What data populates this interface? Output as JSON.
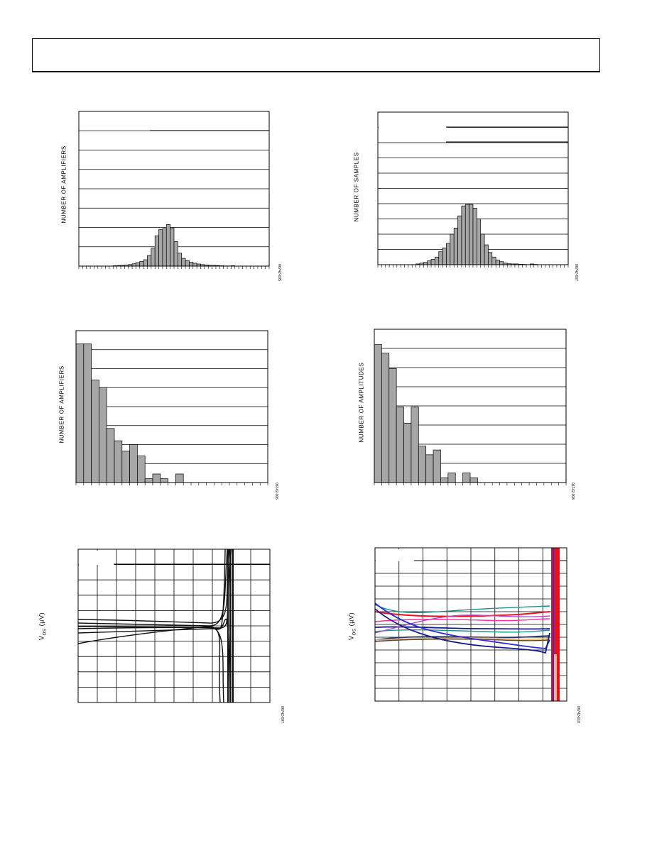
{
  "page": {
    "header_box": ""
  },
  "chart_data": [
    {
      "id": "c1",
      "type": "bar",
      "ylabel": "NUMBER OF AMPLIFIERS",
      "figure_id": "06742-005",
      "bins": 50,
      "values": [
        0,
        0,
        0,
        0,
        0,
        0,
        0,
        0,
        0,
        0.02,
        0.03,
        0.04,
        0.05,
        0.08,
        0.12,
        0.18,
        0.24,
        0.33,
        0.55,
        0.93,
        1.57,
        1.9,
        1.93,
        2.15,
        1.98,
        1.27,
        0.67,
        0.4,
        0.28,
        0.2,
        0.15,
        0.11,
        0.08,
        0.06,
        0.04,
        0.04,
        0.03,
        0.02,
        0.01,
        0.01,
        0.02,
        0,
        0,
        0,
        0,
        0,
        0,
        0,
        0,
        0
      ],
      "ylim": [
        0,
        8
      ],
      "grid": "horizontal",
      "legend_line": true
    },
    {
      "id": "c2",
      "type": "bar",
      "ylabel": "NUMBER OF SAMPLES",
      "figure_id": "06742-007",
      "bins": 50,
      "values": [
        0,
        0,
        0,
        0,
        0,
        0,
        0,
        0,
        0,
        0,
        0.05,
        0.1,
        0.15,
        0.25,
        0.35,
        0.5,
        0.85,
        1.1,
        1.4,
        2.0,
        2.4,
        3.2,
        3.85,
        3.95,
        3.95,
        3.7,
        3.0,
        2.0,
        1.3,
        0.8,
        0.5,
        0.3,
        0.2,
        0.1,
        0.06,
        0.05,
        0.05,
        0.03,
        0.02,
        0.01,
        0.05,
        0.02,
        0,
        0,
        0,
        0,
        0,
        0,
        0,
        0
      ],
      "ylim": [
        0,
        10
      ],
      "grid": "horizontal",
      "legend_line": true
    },
    {
      "id": "c3",
      "type": "bar",
      "ylabel": "NUMBER OF AMPLIFIERS",
      "figure_id": "06742-006",
      "bins": 25,
      "values": [
        7.3,
        7.3,
        5.4,
        5.0,
        2.85,
        2.2,
        1.65,
        2.0,
        1.4,
        0.2,
        0.45,
        0.2,
        0,
        0.45,
        0,
        0,
        0,
        0,
        0,
        0,
        0,
        0,
        0,
        0,
        0
      ],
      "ylim": [
        0,
        8
      ],
      "grid": "horizontal"
    },
    {
      "id": "c4",
      "type": "bar",
      "ylabel": "NUMBER OF AMPLITUDES",
      "figure_id": "06742-008",
      "bins": 26,
      "values": [
        7.2,
        6.75,
        5.95,
        3.95,
        3.1,
        3.95,
        1.9,
        1.45,
        1.7,
        0.25,
        0.5,
        0,
        0.5,
        0.25,
        0,
        0,
        0,
        0,
        0,
        0,
        0,
        0,
        0,
        0,
        0,
        0
      ],
      "ylim": [
        0,
        8
      ],
      "grid": "horizontal"
    },
    {
      "id": "c5",
      "type": "line",
      "ylabel": "V_OS (µV)",
      "ylabel_main": "V",
      "ylabel_sub": "OS",
      "ylabel_unit": " (µV)",
      "figure_id": "06742-007",
      "xlim": [
        0,
        10
      ],
      "ylim": [
        -5,
        5
      ],
      "grid": "both",
      "legend_line": true
    },
    {
      "id": "c6",
      "type": "line",
      "ylabel": "V_OS (µV)",
      "ylabel_main": "V",
      "ylabel_sub": "OS",
      "ylabel_unit": " (µV)",
      "figure_id": "06742-010",
      "xlim": [
        0,
        8
      ],
      "ylim": [
        -6,
        6
      ],
      "grid": "both",
      "legend_line": true,
      "series_colors": [
        "#e8121a",
        "#ff2a9e",
        "#1f8f8a",
        "#1a1a8c",
        "#2b2bd8",
        "#243a6e",
        "#f0b080",
        "#5a4a2a",
        "#b04ad0"
      ]
    }
  ]
}
